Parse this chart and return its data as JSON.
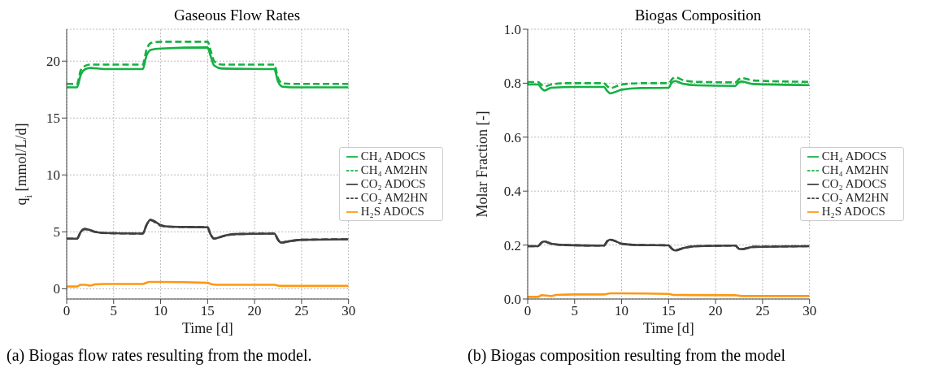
{
  "chart_data": [
    {
      "type": "line",
      "title": "Gaseous Flow Rates",
      "xlabel": "Time [d]",
      "ylabel": "q$_{i}$ [mmol/L/d]",
      "xlim": [
        0,
        30
      ],
      "xticks": [
        0,
        5,
        10,
        15,
        20,
        25,
        30
      ],
      "ylim": [
        -0.9,
        22.8
      ],
      "yticks": [
        0,
        5,
        10,
        15,
        20
      ],
      "grid": true,
      "legend": "right",
      "marker": "none",
      "annotations": [
        "(a) Biogas flow rates resulting from the model."
      ],
      "series": [
        {
          "name": "CH₄ ADOCS",
          "color": "#16b043",
          "line_style": "solid",
          "x": [
            0,
            1.1,
            1.5,
            2,
            2.5,
            4,
            8.1,
            8.5,
            9,
            10,
            15,
            15.3,
            15.7,
            16.5,
            22.1,
            22.5,
            23,
            24,
            30
          ],
          "values": [
            17.7,
            17.7,
            18.8,
            19.3,
            19.4,
            19.3,
            19.3,
            20.5,
            21.0,
            21.1,
            21.2,
            20.5,
            19.6,
            19.35,
            19.3,
            18.2,
            17.75,
            17.7,
            17.7
          ]
        },
        {
          "name": "CO₂ ADOCS",
          "color": "#404040",
          "line_style": "solid",
          "x": [
            0,
            1.1,
            1.5,
            1.9,
            2.5,
            3,
            4,
            8.1,
            8.5,
            8.9,
            9.3,
            10,
            11,
            15,
            15.3,
            15.7,
            16,
            17,
            18,
            22.1,
            22.5,
            22.8,
            23.5,
            25,
            30
          ],
          "values": [
            4.4,
            4.4,
            5.0,
            5.25,
            5.15,
            5.0,
            4.9,
            4.85,
            5.6,
            6.05,
            5.95,
            5.6,
            5.45,
            5.4,
            4.8,
            4.4,
            4.45,
            4.7,
            4.8,
            4.85,
            4.3,
            4.05,
            4.15,
            4.3,
            4.35
          ]
        },
        {
          "name": "H₂S ADOCS",
          "color": "#ff9810",
          "line_style": "solid",
          "x": [
            0,
            1.1,
            1.5,
            2,
            2.5,
            3,
            4,
            8.1,
            8.8,
            10,
            15,
            15.5,
            16,
            22.1,
            22.7,
            30
          ],
          "values": [
            0.2,
            0.2,
            0.35,
            0.35,
            0.28,
            0.38,
            0.42,
            0.42,
            0.6,
            0.6,
            0.52,
            0.38,
            0.35,
            0.35,
            0.25,
            0.25
          ]
        },
        {
          "name": "CH₄ AM2HN",
          "color": "#16b043",
          "line_style": "dashed",
          "x": [
            0,
            1.1,
            1.5,
            2,
            2.5,
            8.1,
            8.5,
            9,
            10,
            15,
            15.3,
            15.7,
            16.5,
            22.1,
            22.5,
            23,
            24,
            30
          ],
          "values": [
            18.0,
            18.0,
            19.2,
            19.6,
            19.7,
            19.7,
            21.0,
            21.6,
            21.7,
            21.7,
            21.0,
            20.0,
            19.7,
            19.7,
            18.5,
            18.05,
            18.0,
            18.0
          ]
        },
        {
          "name": "CO₂ AM2HN",
          "color": "#404040",
          "line_style": "dashed",
          "x": [
            0,
            1.1,
            1.5,
            1.9,
            2.5,
            3,
            4,
            8.1,
            8.5,
            8.9,
            9.3,
            10,
            11,
            15,
            15.3,
            15.7,
            16,
            17,
            18,
            22.1,
            22.5,
            22.8,
            23.5,
            25,
            30
          ],
          "values": [
            4.4,
            4.4,
            5.0,
            5.25,
            5.15,
            5.0,
            4.9,
            4.85,
            5.6,
            6.05,
            5.9,
            5.55,
            5.45,
            5.4,
            4.8,
            4.4,
            4.45,
            4.7,
            4.8,
            4.85,
            4.3,
            4.05,
            4.15,
            4.3,
            4.35
          ]
        }
      ]
    },
    {
      "type": "line",
      "title": "Biogas Composition",
      "xlabel": "Time [d]",
      "ylabel": "Molar Fraction [-]",
      "xlim": [
        0,
        30
      ],
      "xticks": [
        0,
        5,
        10,
        15,
        20,
        25,
        30
      ],
      "ylim": [
        0,
        1
      ],
      "yticks": [
        {
          "value": 0,
          "label": "0.0"
        },
        0.2,
        0.4,
        0.6,
        0.8,
        {
          "value": 1,
          "label": "1.0"
        }
      ],
      "grid": true,
      "legend": "right",
      "marker": "none",
      "annotations": [
        "(b) Biogas composition resulting from the model"
      ],
      "series": [
        {
          "name": "CH₄ ADOCS",
          "color": "#16b043",
          "line_style": "solid",
          "x": [
            0,
            1.1,
            1.5,
            1.8,
            2.5,
            5,
            8.1,
            8.5,
            8.8,
            9.5,
            10,
            12,
            15,
            15.3,
            15.7,
            16.5,
            18,
            22.1,
            22.5,
            22.8,
            24,
            30
          ],
          "values": [
            0.795,
            0.795,
            0.78,
            0.773,
            0.783,
            0.786,
            0.786,
            0.77,
            0.762,
            0.77,
            0.776,
            0.782,
            0.783,
            0.8,
            0.808,
            0.798,
            0.792,
            0.79,
            0.804,
            0.806,
            0.797,
            0.793
          ]
        },
        {
          "name": "CO₂ ADOCS",
          "color": "#404040",
          "line_style": "solid",
          "x": [
            0,
            1.1,
            1.5,
            1.8,
            2.5,
            4,
            8.1,
            8.5,
            8.8,
            9.5,
            10,
            12,
            15,
            15.3,
            15.7,
            16.5,
            18,
            22.1,
            22.5,
            22.8,
            24,
            30
          ],
          "values": [
            0.196,
            0.196,
            0.21,
            0.213,
            0.205,
            0.2,
            0.198,
            0.215,
            0.22,
            0.212,
            0.205,
            0.2,
            0.199,
            0.188,
            0.18,
            0.188,
            0.196,
            0.198,
            0.186,
            0.185,
            0.193,
            0.196
          ]
        },
        {
          "name": "H₂S ADOCS",
          "color": "#ff9810",
          "line_style": "solid",
          "x": [
            0,
            1.1,
            1.5,
            2,
            2.5,
            3,
            5,
            8.1,
            8.8,
            10,
            15,
            15.5,
            22.1,
            22.7,
            30
          ],
          "values": [
            0.008,
            0.008,
            0.014,
            0.013,
            0.011,
            0.015,
            0.017,
            0.017,
            0.021,
            0.021,
            0.019,
            0.015,
            0.014,
            0.011,
            0.011
          ]
        },
        {
          "name": "CH₄ AM2HN",
          "color": "#16b043",
          "line_style": "dashed",
          "x": [
            0,
            1.1,
            1.5,
            1.8,
            2.5,
            4,
            8.1,
            8.5,
            8.8,
            10,
            12,
            15,
            15.4,
            15.7,
            16.5,
            18,
            22.1,
            22.5,
            22.8,
            24,
            30
          ],
          "values": [
            0.804,
            0.804,
            0.793,
            0.788,
            0.795,
            0.8,
            0.8,
            0.788,
            0.782,
            0.795,
            0.8,
            0.8,
            0.816,
            0.822,
            0.812,
            0.805,
            0.803,
            0.815,
            0.819,
            0.81,
            0.805
          ]
        },
        {
          "name": "CO₂ AM2HN",
          "color": "#404040",
          "line_style": "dashed",
          "x": [
            0,
            1.1,
            1.5,
            1.8,
            2.5,
            4,
            8.1,
            8.5,
            8.8,
            9.5,
            10,
            12,
            15,
            15.3,
            15.7,
            16.5,
            18,
            22.1,
            22.5,
            22.8,
            24,
            30
          ],
          "values": [
            0.196,
            0.196,
            0.21,
            0.213,
            0.205,
            0.2,
            0.198,
            0.215,
            0.22,
            0.212,
            0.205,
            0.2,
            0.199,
            0.188,
            0.18,
            0.188,
            0.196,
            0.198,
            0.186,
            0.185,
            0.193,
            0.196
          ]
        }
      ]
    }
  ]
}
